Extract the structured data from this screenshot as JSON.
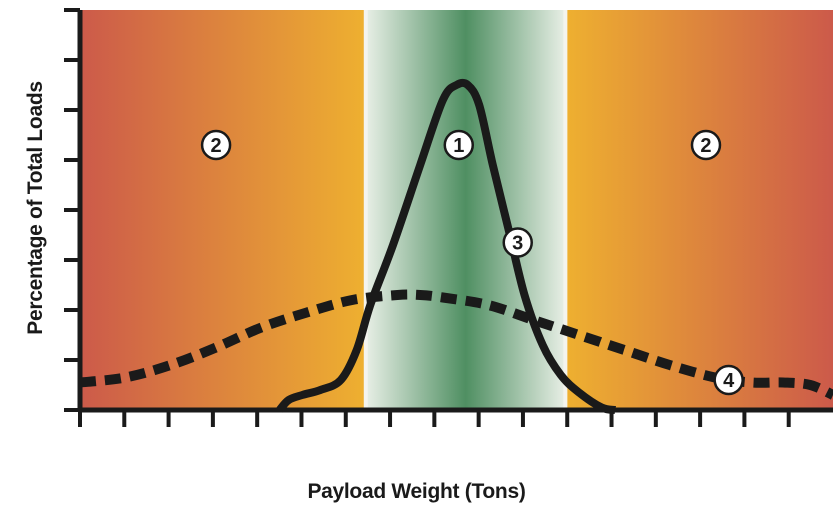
{
  "chart_data": {
    "type": "line",
    "title": "",
    "xlabel": "Payload Weight (Tons)",
    "ylabel": "Percentage of Total Loads",
    "x_tick_count": 17,
    "y_tick_count": 8,
    "x_tick_labels": [],
    "y_tick_labels": [],
    "xlim": [
      0,
      16.6
    ],
    "ylim": [
      0,
      8
    ],
    "grid": false,
    "zones": [
      {
        "marker": "2",
        "x_range": [
          0,
          6.3
        ],
        "color_outer": "#cc5a4a",
        "color_inner": "#eeb030"
      },
      {
        "marker": "1",
        "x_range": [
          6.3,
          10.7
        ],
        "color_outer": "#e8efe6",
        "color_inner": "#4f8f62"
      },
      {
        "marker": "2",
        "x_range": [
          10.7,
          16.6
        ],
        "color_outer": "#cc5a4a",
        "color_inner": "#eeb030"
      }
    ],
    "series": [
      {
        "marker": "3",
        "style": "solid",
        "color": "#1a1a1a",
        "x": [
          4.4,
          4.6,
          4.9,
          5.3,
          5.75,
          6.1,
          6.4,
          6.9,
          7.5,
          8.0,
          8.3,
          8.55,
          8.8,
          9.1,
          9.45,
          9.8,
          10.2,
          10.6,
          11.0,
          11.5,
          11.8
        ],
        "y": [
          0,
          0.2,
          0.3,
          0.4,
          0.6,
          1.2,
          2.1,
          3.3,
          4.9,
          6.2,
          6.5,
          6.5,
          6.1,
          4.9,
          3.6,
          2.3,
          1.3,
          0.7,
          0.35,
          0.05,
          0
        ]
      },
      {
        "marker": "4",
        "style": "dashed",
        "color": "#1a1a1a",
        "x": [
          0,
          1.0,
          2.0,
          3.0,
          4.0,
          5.0,
          6.0,
          7.0,
          7.5,
          8.0,
          9.0,
          10.0,
          11.0,
          12.0,
          13.0,
          14.0,
          14.8,
          15.5,
          16.1,
          16.6
        ],
        "y": [
          0.55,
          0.65,
          0.9,
          1.25,
          1.65,
          1.95,
          2.2,
          2.3,
          2.3,
          2.25,
          2.1,
          1.8,
          1.5,
          1.2,
          0.9,
          0.65,
          0.55,
          0.55,
          0.5,
          0.3
        ]
      }
    ],
    "markers": [
      {
        "label": "2",
        "x": 3.0,
        "y": 5.3
      },
      {
        "label": "1",
        "x": 8.35,
        "y": 5.3
      },
      {
        "label": "2",
        "x": 13.8,
        "y": 5.3
      },
      {
        "label": "3",
        "x": 9.65,
        "y": 3.35
      },
      {
        "label": "4",
        "x": 14.3,
        "y": 0.6
      }
    ]
  }
}
